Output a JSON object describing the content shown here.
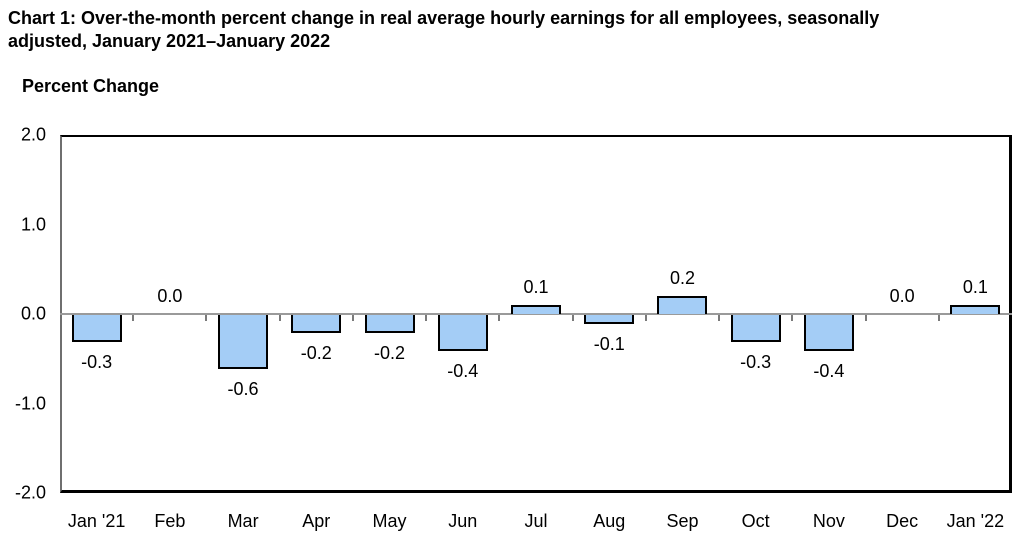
{
  "title_lines": [
    "Chart 1: Over-the-month percent change in real average hourly earnings for all employees, seasonally",
    "adjusted, January 2021–January 2022"
  ],
  "chart_data": {
    "type": "bar",
    "title": "Chart 1: Over-the-month percent change in real average hourly earnings for all employees, seasonally adjusted, January 2021–January 2022",
    "ylabel": "Percent Change",
    "xlabel": "",
    "categories": [
      "Jan '21",
      "Feb",
      "Mar",
      "Apr",
      "May",
      "Jun",
      "Jul",
      "Aug",
      "Sep",
      "Oct",
      "Nov",
      "Dec",
      "Jan '22"
    ],
    "values": [
      -0.3,
      0.0,
      -0.6,
      -0.2,
      -0.2,
      -0.4,
      0.1,
      -0.1,
      0.2,
      -0.3,
      -0.4,
      0.0,
      0.1
    ],
    "value_labels": [
      "-0.3",
      "0.0",
      "-0.6",
      "-0.2",
      "-0.2",
      "-0.4",
      "0.1",
      "-0.1",
      "0.2",
      "-0.3",
      "-0.4",
      "0.0",
      "0.1"
    ],
    "ylim": [
      -2.0,
      2.0
    ],
    "yticks": [
      2.0,
      1.0,
      0.0,
      -1.0,
      -2.0
    ],
    "ytick_labels": [
      "2.0",
      "1.0",
      "0.0",
      "-1.0",
      "-2.0"
    ],
    "grid": false,
    "legend": null,
    "bar_color": "#a4cdf6",
    "bar_border_color": "#000000",
    "zero_line_color": "#9a9a9a"
  }
}
